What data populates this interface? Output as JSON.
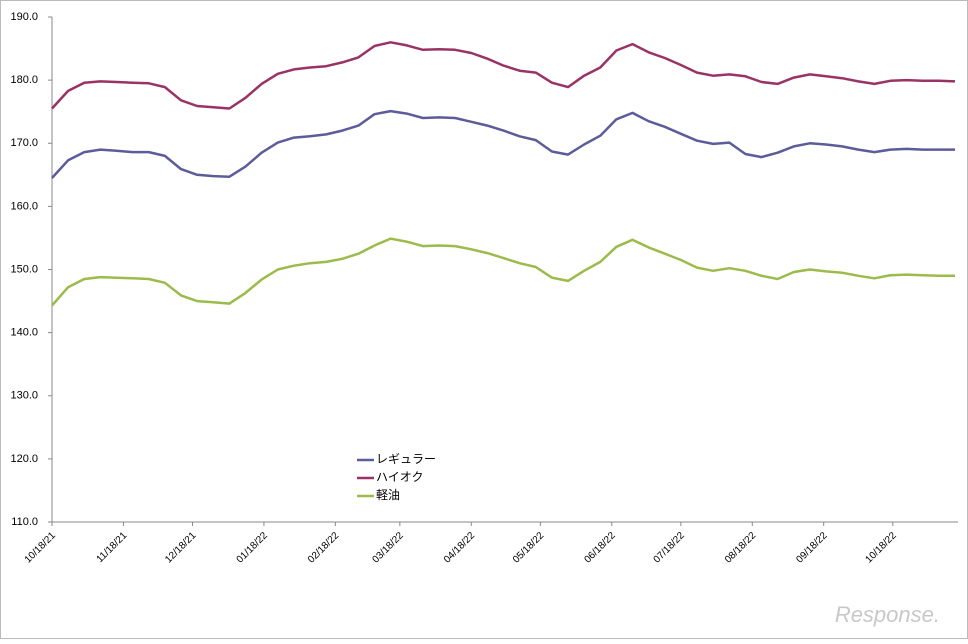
{
  "chart_data": {
    "type": "line",
    "x_start": "2021-10-18",
    "x_step_days": 7,
    "series": [
      {
        "name": "レギュラー",
        "color": "#5c5c9a",
        "values": [
          164.5,
          167.3,
          168.6,
          169.0,
          168.8,
          168.6,
          168.6,
          168.0,
          165.9,
          165.0,
          164.8,
          164.7,
          166.3,
          168.5,
          170.1,
          170.9,
          171.1,
          171.4,
          172.0,
          172.8,
          174.6,
          175.1,
          174.7,
          174.0,
          174.1,
          174.0,
          173.4,
          172.8,
          172.0,
          171.1,
          170.5,
          168.7,
          168.2,
          169.8,
          171.2,
          173.8,
          174.8,
          173.5,
          172.6,
          171.5,
          170.4,
          169.9,
          170.1,
          168.3,
          167.8,
          168.5,
          169.5,
          170.0,
          169.8,
          169.5,
          169.0,
          168.6,
          169.0,
          169.1,
          169.0,
          169.0,
          169.0
        ]
      },
      {
        "name": "ハイオク",
        "color": "#993366",
        "values": [
          175.5,
          178.3,
          179.6,
          179.8,
          179.7,
          179.6,
          179.5,
          178.9,
          176.8,
          175.9,
          175.7,
          175.5,
          177.2,
          179.4,
          181.0,
          181.7,
          182.0,
          182.2,
          182.8,
          183.6,
          185.4,
          186.0,
          185.5,
          184.8,
          184.9,
          184.8,
          184.3,
          183.4,
          182.3,
          181.5,
          181.2,
          179.6,
          178.9,
          180.7,
          182.0,
          184.7,
          185.7,
          184.4,
          183.5,
          182.4,
          181.2,
          180.7,
          180.9,
          180.6,
          179.7,
          179.4,
          180.4,
          180.9,
          180.6,
          180.3,
          179.8,
          179.4,
          179.9,
          180.0,
          179.9,
          179.9,
          179.8
        ]
      },
      {
        "name": "軽油",
        "color": "#9bbb4a",
        "values": [
          144.3,
          147.2,
          148.5,
          148.8,
          148.7,
          148.6,
          148.5,
          147.9,
          145.9,
          145.0,
          144.8,
          144.6,
          146.3,
          148.4,
          150.0,
          150.6,
          151.0,
          151.2,
          151.7,
          152.5,
          153.8,
          154.9,
          154.4,
          153.7,
          153.8,
          153.7,
          153.2,
          152.6,
          151.8,
          151.0,
          150.4,
          148.7,
          148.2,
          149.8,
          151.2,
          153.6,
          154.7,
          153.5,
          152.5,
          151.5,
          150.3,
          149.8,
          150.2,
          149.8,
          149.0,
          148.5,
          149.6,
          150.0,
          149.7,
          149.5,
          149.0,
          148.6,
          149.1,
          149.2,
          149.1,
          149.0,
          149.0
        ]
      }
    ],
    "ylim": [
      110,
      190
    ],
    "yticks": [
      {
        "value": 110,
        "label": "110.0"
      },
      {
        "value": 120,
        "label": "120.0"
      },
      {
        "value": 130,
        "label": "130.0"
      },
      {
        "value": 140,
        "label": "140.0"
      },
      {
        "value": 150,
        "label": "150.0"
      },
      {
        "value": 160,
        "label": "160.0"
      },
      {
        "value": 170,
        "label": "170.0"
      },
      {
        "value": 180,
        "label": "180.0"
      },
      {
        "value": 190,
        "label": "190.0"
      }
    ],
    "xticks": [
      {
        "value": "2021-10-18",
        "label": "10/18/21"
      },
      {
        "value": "2021-11-18",
        "label": "11/18/21"
      },
      {
        "value": "2021-12-18",
        "label": "12/18/21"
      },
      {
        "value": "2022-01-18",
        "label": "01/18/22"
      },
      {
        "value": "2022-02-18",
        "label": "02/18/22"
      },
      {
        "value": "2022-03-18",
        "label": "03/18/22"
      },
      {
        "value": "2022-04-18",
        "label": "04/18/22"
      },
      {
        "value": "2022-05-18",
        "label": "05/18/22"
      },
      {
        "value": "2022-06-18",
        "label": "06/18/22"
      },
      {
        "value": "2022-07-18",
        "label": "07/18/22"
      },
      {
        "value": "2022-08-18",
        "label": "08/18/22"
      },
      {
        "value": "2022-09-18",
        "label": "09/18/22"
      },
      {
        "value": "2022-10-18",
        "label": "10/18/22"
      }
    ],
    "grid": false,
    "watermark": "Response."
  }
}
